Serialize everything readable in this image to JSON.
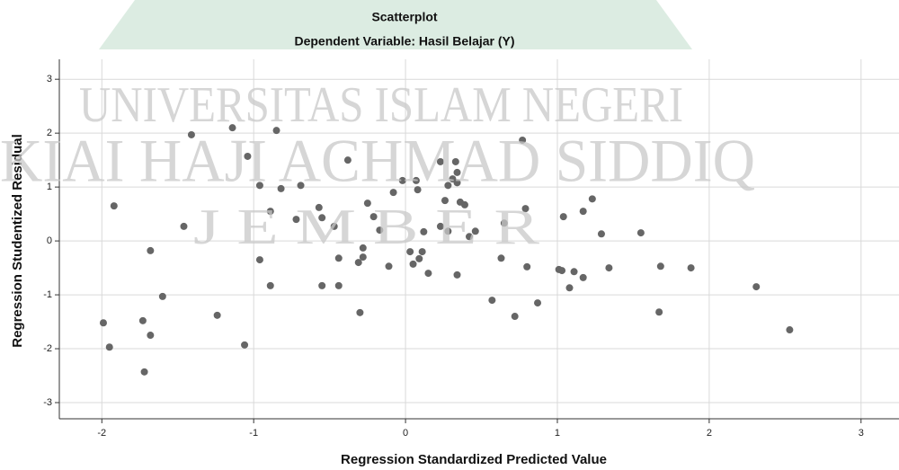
{
  "watermark": [
    "UNIVERSITAS ISLAM NEGERI",
    "KIAI HAJI ACHMAD SIDDIQ",
    "J E M B E R"
  ],
  "chart_data": {
    "type": "scatter",
    "title": "Scatterplot",
    "subtitle": "Dependent Variable: Hasil Belajar (Y)",
    "x_label": "Regression Standardized Predicted Value",
    "y_label": "Regression Studentized Residual",
    "color": "#666666",
    "grid": true,
    "xlim": [
      -2.28,
      3.25
    ],
    "ylim": [
      -3.3,
      3.37
    ],
    "xticks": [
      -2,
      -1,
      0,
      1,
      2,
      3
    ],
    "yticks": [
      -3,
      -2,
      -1,
      0,
      1,
      2,
      3
    ],
    "x": [
      -1.99,
      -1.95,
      -1.92,
      -1.72,
      -1.73,
      -1.68,
      -1.68,
      -1.6,
      -1.46,
      -1.41,
      -1.24,
      -1.14,
      -1.06,
      -1.04,
      -0.96,
      -0.96,
      -0.89,
      -0.89,
      -0.85,
      -0.82,
      -0.72,
      -0.69,
      -0.57,
      -0.55,
      -0.55,
      -0.47,
      -0.44,
      -0.44,
      -0.38,
      -0.31,
      -0.28,
      -0.28,
      -0.3,
      -0.25,
      -0.21,
      -0.17,
      -0.11,
      -0.08,
      -0.02,
      0.03,
      0.05,
      0.07,
      0.08,
      0.09,
      0.11,
      0.12,
      0.15,
      0.23,
      0.23,
      0.26,
      0.28,
      0.28,
      0.31,
      0.33,
      0.34,
      0.34,
      0.34,
      0.36,
      0.39,
      0.42,
      0.46,
      0.57,
      0.63,
      0.65,
      0.72,
      0.77,
      0.79,
      0.8,
      0.87,
      1.01,
      1.03,
      1.04,
      1.08,
      1.11,
      1.17,
      1.17,
      1.23,
      1.29,
      1.34,
      1.55,
      1.67,
      1.68,
      1.88,
      2.31,
      2.53
    ],
    "y": [
      -1.52,
      -1.97,
      0.65,
      -2.43,
      -1.48,
      -0.18,
      -1.75,
      -1.03,
      0.27,
      1.97,
      -1.38,
      2.1,
      -1.93,
      1.57,
      1.03,
      -0.35,
      -0.83,
      0.55,
      2.05,
      0.97,
      0.4,
      1.03,
      0.62,
      0.43,
      -0.83,
      0.27,
      -0.32,
      -0.83,
      1.5,
      -0.4,
      -0.3,
      -0.13,
      -1.33,
      0.7,
      0.45,
      0.2,
      -0.47,
      0.9,
      1.12,
      -0.2,
      -0.43,
      1.12,
      0.95,
      -0.33,
      -0.2,
      0.17,
      -0.6,
      1.47,
      0.27,
      0.75,
      0.18,
      1.03,
      1.15,
      1.47,
      1.27,
      1.08,
      -0.63,
      0.72,
      0.67,
      0.08,
      0.18,
      -1.1,
      -0.32,
      0.33,
      -1.4,
      1.87,
      0.6,
      -0.48,
      -1.15,
      -0.53,
      -0.55,
      0.45,
      -0.87,
      -0.57,
      -0.68,
      0.55,
      0.78,
      0.13,
      -0.5,
      0.15,
      -1.32,
      -0.47,
      -0.5,
      -0.85,
      -1.65
    ]
  }
}
